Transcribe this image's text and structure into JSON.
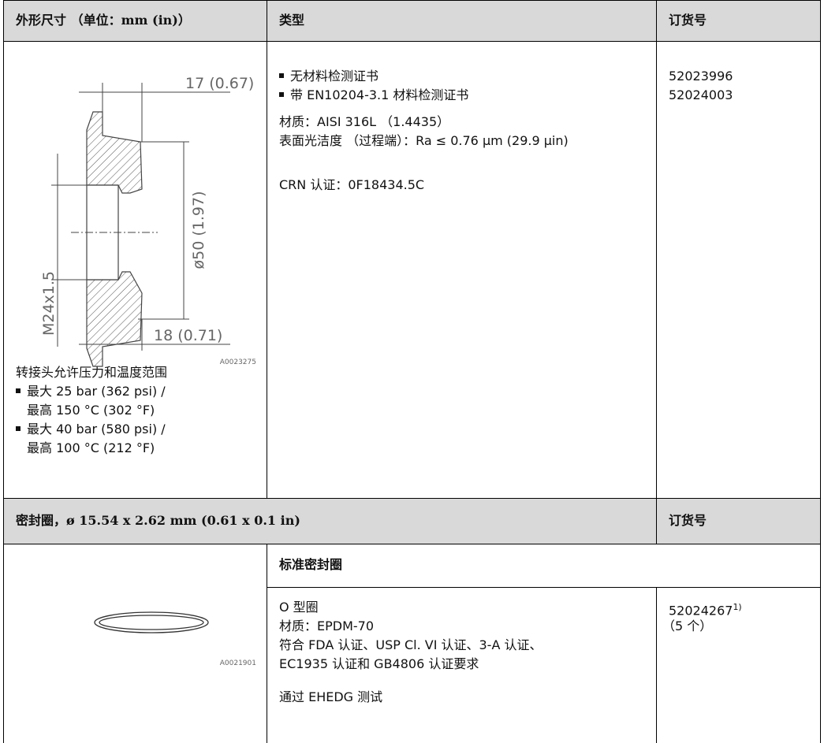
{
  "table": {
    "header": [
      "外形尺寸 （单位：mm (in)）",
      "类型",
      "订货号"
    ],
    "adapter": {
      "drawing": {
        "dimensions": [
          "17 (0.67)",
          "ø50 (1.97)",
          "M24x1.5",
          "18 (0.71)"
        ],
        "figure_id": "A0023275"
      },
      "note_title": "转接头允许压力和温度范围",
      "notes": [
        [
          "最大 25 bar (362 psi) /",
          "最高 150 °C (302 °F)"
        ],
        [
          "最大 40 bar (580 psi) /",
          "最高 100 °C (212 °F)"
        ]
      ],
      "types": [
        "无材料检测证书",
        "带 EN10204-3.1 材料检测证书"
      ],
      "material": "材质：AISI 316L （1.4435）",
      "surface": "表面光洁度 （过程端）：Ra ≤ 0.76 µm (29.9 µin)",
      "crn": "CRN 认证：0F18434.5C",
      "order_numbers": [
        "52023996",
        "52024003"
      ]
    },
    "seal_header": [
      "密封圈，ø 15.54 x 2.62 mm (0.61 x 0.1 in)",
      "订货号"
    ],
    "seal_subheader": "标准密封圈",
    "seal": {
      "figure_id": "A0021901",
      "lines": [
        "O 型圈",
        "材质：EPDM-70",
        "符合 FDA 认证、USP Cl. VI 认证、3-A 认证、",
        "EC1935 认证和 GB4806 认证要求"
      ],
      "test": "通过 EHEDG 测试",
      "order_number": "52024267",
      "footnote": "1)",
      "quantity": "（5 个）"
    }
  }
}
